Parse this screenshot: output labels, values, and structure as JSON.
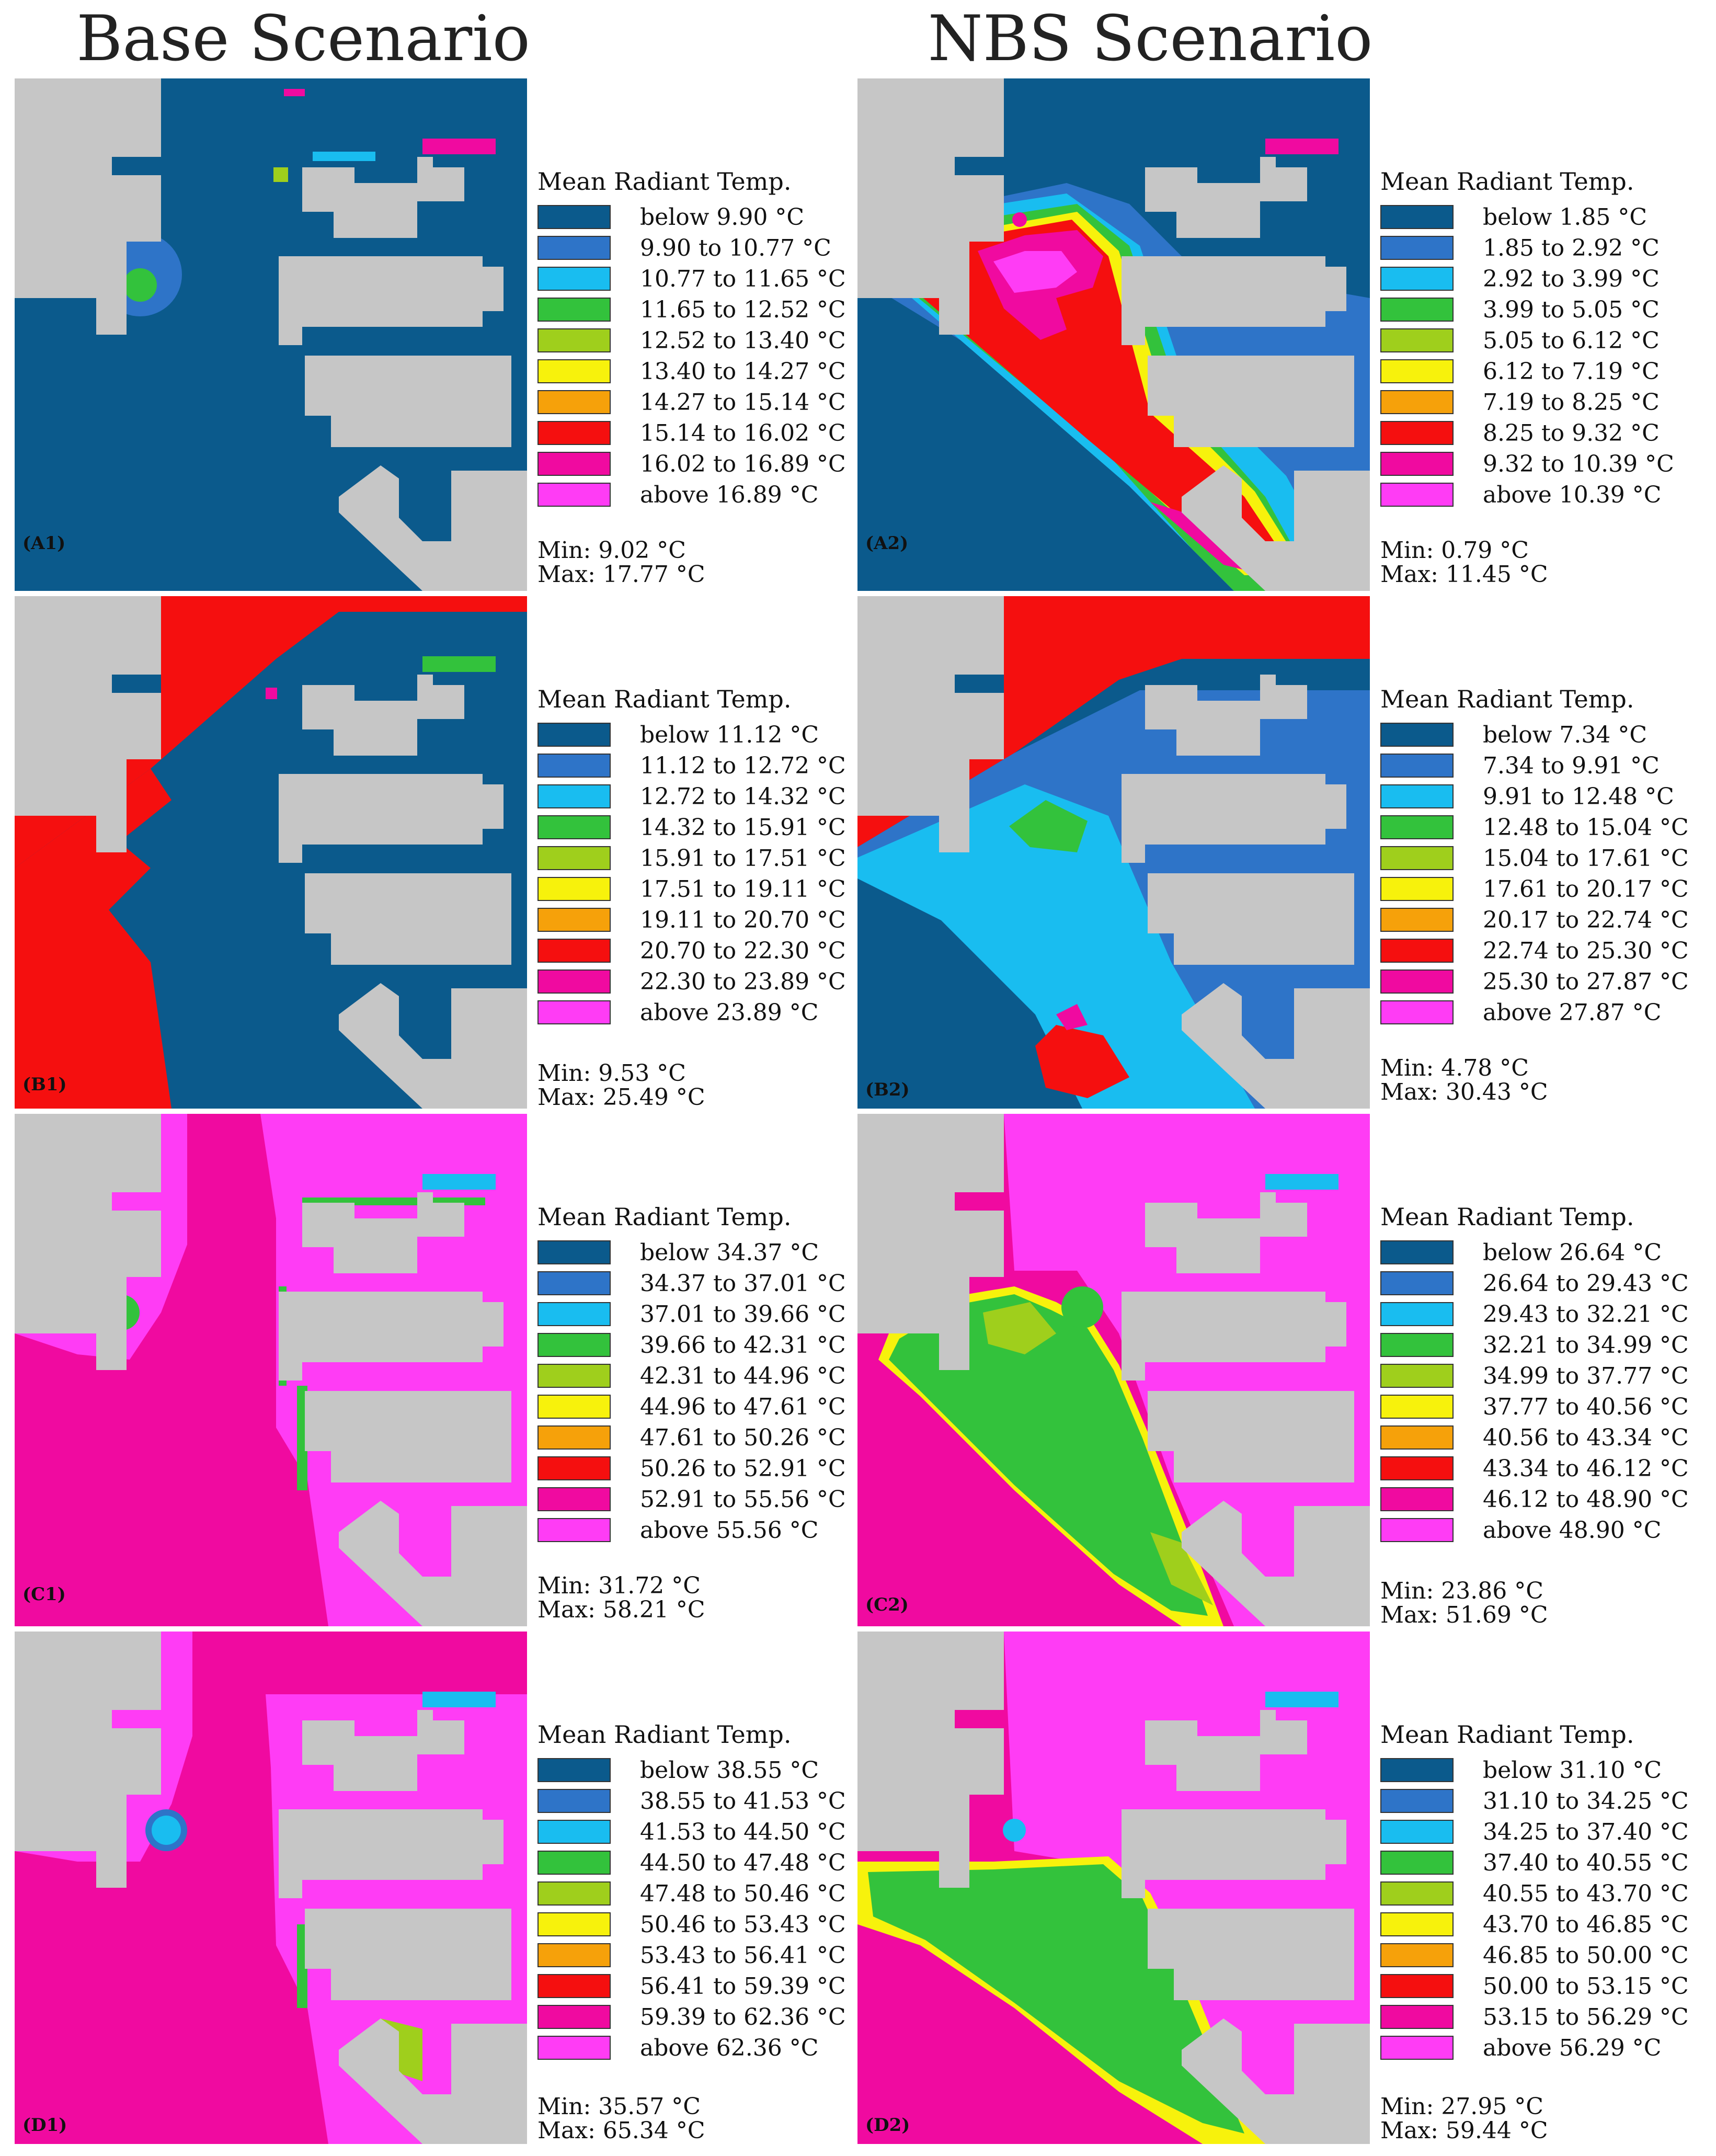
{
  "titles": {
    "base": "Base Scenario",
    "nbs": "NBS Scenario"
  },
  "colors": {
    "grey": "#c6c6c6",
    "c0": "#0b5a8c",
    "c1": "#2e74c8",
    "c2": "#19bdf0",
    "c3": "#33c23c",
    "c4": "#9fcf1c",
    "c5": "#f7f20c",
    "c6": "#f6a10a",
    "c7": "#f50f0f",
    "c8": "#f00aa0",
    "c9": "#ff3cf5"
  },
  "panels": [
    {
      "label": "(A1)",
      "legend_title": "Mean Radiant Temp.",
      "ranges": [
        "below 9.90 °C",
        "9.90 to 10.77 °C",
        "10.77 to 11.65 °C",
        "11.65 to 12.52 °C",
        "12.52 to 13.40 °C",
        "13.40 to 14.27 °C",
        "14.27 to 15.14 °C",
        "15.14 to 16.02 °C",
        "16.02 to 16.89 °C",
        "above 16.89 °C"
      ],
      "min": "Min: 9.02 °C",
      "max": "Max: 17.77 °C"
    },
    {
      "label": "(A2)",
      "legend_title": "Mean Radiant Temp.",
      "ranges": [
        "below 1.85 °C",
        "1.85 to 2.92 °C",
        "2.92 to 3.99 °C",
        "3.99 to 5.05 °C",
        "5.05 to 6.12 °C",
        "6.12 to 7.19 °C",
        "7.19 to 8.25 °C",
        "8.25 to 9.32 °C",
        "9.32 to 10.39 °C",
        "above 10.39 °C"
      ],
      "min": "Min: 0.79 °C",
      "max": "Max: 11.45 °C"
    },
    {
      "label": "(B1)",
      "legend_title": "Mean Radiant Temp.",
      "ranges": [
        "below 11.12 °C",
        "11.12 to 12.72 °C",
        "12.72 to 14.32 °C",
        "14.32 to 15.91 °C",
        "15.91 to 17.51 °C",
        "17.51 to 19.11 °C",
        "19.11 to 20.70 °C",
        "20.70 to 22.30 °C",
        "22.30 to 23.89 °C",
        "above 23.89 °C"
      ],
      "min": "Min: 9.53 °C",
      "max": "Max: 25.49 °C"
    },
    {
      "label": "(B2)",
      "legend_title": "Mean Radiant Temp.",
      "ranges": [
        "below 7.34 °C",
        "7.34 to 9.91 °C",
        "9.91 to 12.48 °C",
        "12.48 to 15.04 °C",
        "15.04 to 17.61 °C",
        "17.61 to 20.17 °C",
        "20.17 to 22.74 °C",
        "22.74 to 25.30 °C",
        "25.30 to 27.87 °C",
        "above 27.87 °C"
      ],
      "min": "Min: 4.78 °C",
      "max": "Max: 30.43 °C"
    },
    {
      "label": "(C1)",
      "legend_title": "Mean Radiant Temp.",
      "ranges": [
        "below 34.37 °C",
        "34.37 to 37.01 °C",
        "37.01 to 39.66 °C",
        "39.66 to 42.31 °C",
        "42.31 to 44.96 °C",
        "44.96 to 47.61 °C",
        "47.61 to 50.26 °C",
        "50.26 to 52.91 °C",
        "52.91 to 55.56 °C",
        "above 55.56 °C"
      ],
      "min": "Min: 31.72 °C",
      "max": "Max: 58.21 °C"
    },
    {
      "label": "(C2)",
      "legend_title": "Mean Radiant Temp.",
      "ranges": [
        "below 26.64 °C",
        "26.64 to 29.43 °C",
        "29.43 to 32.21 °C",
        "32.21 to 34.99 °C",
        "34.99 to 37.77 °C",
        "37.77 to 40.56 °C",
        "40.56 to 43.34 °C",
        "43.34 to 46.12 °C",
        "46.12 to 48.90 °C",
        "above 48.90 °C"
      ],
      "min": "Min: 23.86 °C",
      "max": "Max: 51.69 °C"
    },
    {
      "label": "(D1)",
      "legend_title": "Mean Radiant Temp.",
      "ranges": [
        "below 38.55 °C",
        "38.55 to 41.53 °C",
        "41.53 to 44.50 °C",
        "44.50 to 47.48 °C",
        "47.48 to 50.46 °C",
        "50.46 to 53.43 °C",
        "53.43 to 56.41 °C",
        "56.41 to 59.39 °C",
        "59.39 to 62.36 °C",
        "above 62.36 °C"
      ],
      "min": "Min: 35.57 °C",
      "max": "Max: 65.34 °C"
    },
    {
      "label": "(D2)",
      "legend_title": "Mean Radiant Temp.",
      "ranges": [
        "below 31.10 °C",
        "31.10 to 34.25 °C",
        "34.25 to 37.40 °C",
        "37.40 to 40.55 °C",
        "40.55 to 43.70 °C",
        "43.70 to 46.85 °C",
        "46.85 to 50.00 °C",
        "50.00 to 53.15 °C",
        "53.15 to 56.29 °C",
        "above 56.29 °C"
      ],
      "min": "Min: 27.95 °C",
      "max": "Max: 59.44 °C"
    }
  ]
}
